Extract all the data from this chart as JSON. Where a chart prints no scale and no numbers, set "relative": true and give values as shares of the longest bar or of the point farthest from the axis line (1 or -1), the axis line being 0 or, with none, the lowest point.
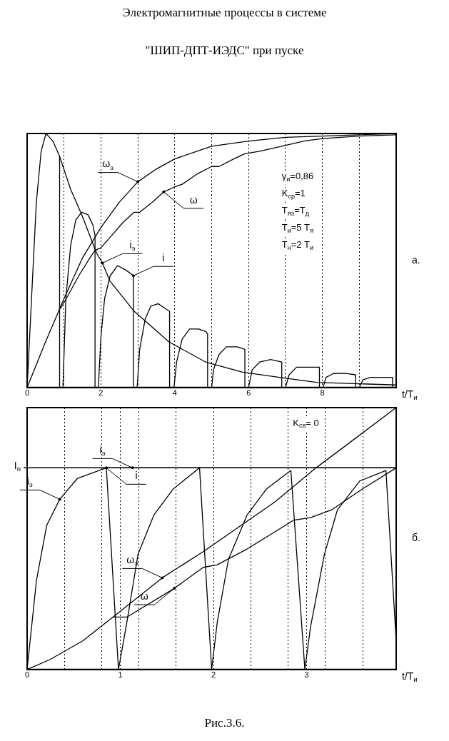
{
  "chart_data": [
    {
      "type": "line",
      "title": "Электромагнитные процессы в системе",
      "subtitle": "\"ШИП-ДПТ-ИЭДС\" при пуске",
      "xlabel": "t/T$_{и}$",
      "y2label": "а.",
      "relative": true,
      "grid": "x",
      "legend": false,
      "marker": "none",
      "line_style": "solid",
      "xlim": [
        0,
        10
      ],
      "xticks": [
        0,
        {
          "value": 1,
          "label": null
        },
        2,
        {
          "value": 3,
          "label": null
        },
        4,
        {
          "value": 5,
          "label": null
        },
        6,
        {
          "value": 7,
          "label": null
        },
        8,
        {
          "value": 9,
          "label": null
        }
      ],
      "series": [
        {
          "color": "#000000",
          "x": [
            0,
            0.5,
            1,
            1.5,
            2,
            2.5,
            3,
            3.5,
            4,
            5,
            6,
            7,
            8,
            10
          ],
          "values": [
            0,
            0.18,
            0.35,
            0.51,
            0.63,
            0.73,
            0.81,
            0.86,
            0.9,
            0.95,
            0.97,
            0.985,
            0.99,
            1
          ]
        },
        {
          "color": "#000000",
          "x": [
            0.9,
            1.1,
            1.4,
            1.7,
            1.84,
            2,
            2.3,
            2.6,
            2.9,
            3.05,
            3.4,
            3.7,
            4,
            4.2,
            4.6,
            5,
            5.2,
            5.6,
            5.9,
            6.3,
            6.9,
            7.5,
            8,
            9,
            10
          ],
          "values": [
            0.31,
            0.36,
            0.44,
            0.51,
            0.54,
            0.55,
            0.6,
            0.65,
            0.69,
            0.69,
            0.73,
            0.77,
            0.79,
            0.8,
            0.84,
            0.87,
            0.87,
            0.9,
            0.92,
            0.93,
            0.95,
            0.97,
            0.98,
            0.99,
            0.995
          ]
        },
        {
          "color": "#000000",
          "x": [
            0,
            0.15,
            0.25,
            0.38,
            0.51,
            0.7,
            0.88,
            1.18,
            1.48,
            1.88,
            2.04,
            2.24,
            2.9,
            3.84,
            4.84,
            5.84,
            6.84,
            7.84,
            10
          ],
          "values": [
            0,
            0.44,
            0.73,
            0.93,
            1,
            0.97,
            0.91,
            0.78,
            0.68,
            0.53,
            0.49,
            0.42,
            0.3,
            0.18,
            0.1,
            0.06,
            0.04,
            0.02,
            0.01
          ]
        },
        {
          "color": "#000000",
          "x": [
            0.88,
            0.88,
            0.97,
            1.05,
            1.18,
            1.32,
            1.48,
            1.65,
            1.78,
            1.84,
            1.84,
            1.93,
            2,
            2.1,
            2.25,
            2.45,
            2.7,
            2.88,
            2.88,
            2.98,
            3.05,
            3.2,
            3.35,
            3.55,
            3.75,
            3.86,
            3.86,
            3.98,
            4.05,
            4.2,
            4.4,
            4.65,
            4.85,
            4.89,
            4.89,
            5,
            5.05,
            5.2,
            5.4,
            5.7,
            5.9,
            5.9,
            6,
            6.1,
            6.3,
            6.6,
            6.9,
            6.9,
            7,
            7.1,
            7.3,
            7.6,
            7.92,
            7.92,
            8.02,
            8.1,
            8.3,
            8.6,
            8.9,
            8.9,
            9,
            9.1,
            9.3,
            9.6,
            9.9,
            9.9,
            10
          ],
          "values": [
            0.91,
            0,
            0,
            0.35,
            0.56,
            0.66,
            0.69,
            0.68,
            0.64,
            0.6,
            0,
            0,
            0.2,
            0.35,
            0.44,
            0.48,
            0.46,
            0.44,
            0,
            0,
            0.15,
            0.27,
            0.32,
            0.33,
            0.31,
            0.3,
            0,
            0,
            0.1,
            0.19,
            0.23,
            0.23,
            0.22,
            0.21,
            0,
            0,
            0.07,
            0.13,
            0.16,
            0.16,
            0.15,
            0,
            0,
            0.07,
            0.1,
            0.11,
            0.1,
            0,
            0,
            0.05,
            0.08,
            0.08,
            0.08,
            0,
            0,
            0.04,
            0.055,
            0.056,
            0.05,
            0,
            0,
            0.03,
            0.04,
            0.04,
            0.04,
            0,
            0
          ]
        }
      ],
      "annotations": [
        {
          "text": "ω$_{э}$",
          "x": 3,
          "y": 0.81
        },
        {
          "text": "ω",
          "x": 3.7,
          "y": 0.77
        },
        {
          "text": "i$_{э}$",
          "x": 2.04,
          "y": 0.49
        },
        {
          "text": "i",
          "x": 2.88,
          "y": 0.44
        },
        "γ$_{и}$=0,86",
        "K$_{ср}$=1",
        "T$_{яэ}$=T$_{д}$",
        "T$_{и}$=5 T$_{я}$",
        "T$_{н}$=2 T$_{и}$"
      ]
    },
    {
      "type": "line",
      "xlabel": "t/T$_{и}$",
      "y2label": "б.",
      "relative": true,
      "grid": "x",
      "legend": false,
      "marker": "none",
      "line_style": "solid",
      "xlim": [
        0,
        3.96
      ],
      "xticks": [
        0,
        {
          "value": 0.4,
          "label": null
        },
        {
          "value": 0.8,
          "label": null
        },
        1,
        {
          "value": 1.2,
          "label": null
        },
        {
          "value": 1.6,
          "label": null
        },
        2,
        {
          "value": 2.4,
          "label": null
        },
        {
          "value": 2.8,
          "label": null
        },
        3,
        {
          "value": 3.2,
          "label": null
        },
        {
          "value": 3.6,
          "label": null
        }
      ],
      "ref_lines": [
        {
          "axis": "y",
          "value": 0.77,
          "label": "I$_{п}$"
        }
      ],
      "series": [
        {
          "color": "#000000",
          "x": [
            0,
            0.24,
            0.6,
            0.92,
            1.45,
            1.89,
            2.66,
            3.1,
            3.96
          ],
          "values": [
            0,
            0.037,
            0.11,
            0.2,
            0.35,
            0.45,
            0.64,
            0.77,
            1
          ]
        },
        {
          "color": "#000000",
          "x": [
            0.92,
            1.07,
            1.58,
            1.89,
            2.04,
            2.36,
            2.86,
            3.04,
            3.27,
            3.6,
            3.96
          ],
          "values": [
            0.2,
            0.2,
            0.31,
            0.39,
            0.4,
            0.46,
            0.57,
            0.58,
            0.61,
            0.69,
            0.77
          ]
        },
        {
          "color": "#000000",
          "x": [
            0,
            0.1,
            0.21,
            0.35,
            0.54,
            0.85,
            1.13,
            3.96
          ],
          "values": [
            0,
            0.34,
            0.55,
            0.65,
            0.73,
            0.77,
            0.77,
            0.77
          ]
        },
        {
          "color": "#000000",
          "x": [
            0.85,
            0.98,
            1.07,
            1.19,
            1.36,
            1.57,
            1.85,
            1.98,
            2.04,
            2.16,
            2.36,
            2.57,
            2.83,
            2.98,
            3.04,
            3.19,
            3.33,
            3.57,
            3.85,
            3.96
          ],
          "values": [
            0.77,
            0,
            0.18,
            0.44,
            0.59,
            0.69,
            0.77,
            0,
            0.18,
            0.42,
            0.59,
            0.69,
            0.76,
            0,
            0.16,
            0.44,
            0.61,
            0.72,
            0.76,
            0.11
          ]
        }
      ],
      "annotations": [
        {
          "text": "i$_{э}$",
          "x": 1.13,
          "y": 0.77
        },
        {
          "text": "i$_{э}$",
          "x": 0.35,
          "y": 0.65
        },
        {
          "text": "i",
          "x": 0.85,
          "y": 0.77
        },
        {
          "text": "ω$_{э}$",
          "x": 1.45,
          "y": 0.35
        },
        {
          "text": "ω",
          "x": 1.58,
          "y": 0.31
        },
        "K$_{св}$= 0",
        "Рис.3.6."
      ]
    }
  ]
}
